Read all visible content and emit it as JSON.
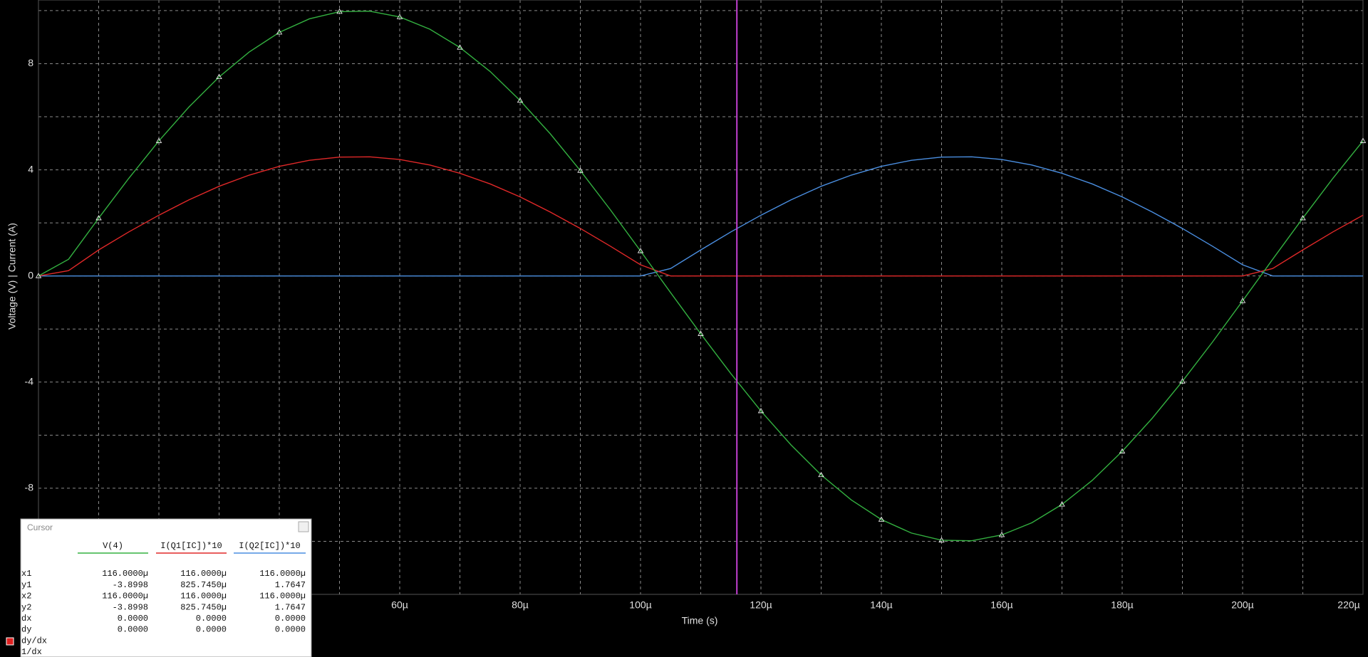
{
  "chart_data": {
    "type": "line",
    "xlabel": "Time (s)",
    "ylabel": "Voltage (V) | Current (A)",
    "x": [
      0,
      5e-06,
      1e-05,
      1.5e-05,
      2e-05,
      2.5e-05,
      3e-05,
      3.5e-05,
      4e-05,
      4.5e-05,
      5e-05,
      5.5e-05,
      6e-05,
      6.5e-05,
      7e-05,
      7.5e-05,
      8e-05,
      8.5e-05,
      9e-05,
      9.5e-05,
      0.0001,
      0.000105,
      0.00011,
      0.000115,
      0.00012,
      0.000125,
      0.00013,
      0.000135,
      0.00014,
      0.000145,
      0.00015,
      0.000155,
      0.00016,
      0.000165,
      0.00017,
      0.000175,
      0.00018,
      0.000185,
      0.00019,
      0.000195,
      0.0002,
      0.000205,
      0.00021,
      0.000215,
      0.00022
    ],
    "series": [
      {
        "name": "V(4)",
        "color": "#33b040",
        "markers": true,
        "values": [
          0,
          0.63,
          2.18,
          3.68,
          5.09,
          6.37,
          7.5,
          8.44,
          9.18,
          9.69,
          9.96,
          9.98,
          9.76,
          9.3,
          8.61,
          7.71,
          6.61,
          5.36,
          3.97,
          2.49,
          0.94,
          -0.63,
          -2.18,
          -3.68,
          -5.09,
          -6.37,
          -7.5,
          -8.44,
          -9.18,
          -9.69,
          -9.96,
          -9.98,
          -9.76,
          -9.3,
          -8.61,
          -7.71,
          -6.61,
          -5.36,
          -3.97,
          -2.49,
          -0.94,
          0.63,
          2.18,
          3.68,
          5.09
        ]
      },
      {
        "name": "I(Q1[IC])*10",
        "color": "#e02828",
        "markers": false,
        "values": [
          0,
          0.2,
          0.98,
          1.66,
          2.29,
          2.87,
          3.38,
          3.8,
          4.13,
          4.36,
          4.48,
          4.49,
          4.39,
          4.18,
          3.87,
          3.47,
          2.98,
          2.41,
          1.79,
          1.12,
          0.42,
          0,
          0,
          0,
          0,
          0,
          0,
          0,
          0,
          0,
          0,
          0,
          0,
          0,
          0,
          0,
          0,
          0,
          0,
          0,
          0,
          0.28,
          0.98,
          1.66,
          2.29
        ]
      },
      {
        "name": "I(Q2[IC])*10",
        "color": "#4a8ee0",
        "markers": false,
        "values": [
          0,
          0,
          0,
          0,
          0,
          0,
          0,
          0,
          0,
          0,
          0,
          0,
          0,
          0,
          0,
          0,
          0,
          0,
          0,
          0,
          0,
          0.28,
          0.98,
          1.66,
          2.29,
          2.87,
          3.38,
          3.8,
          4.13,
          4.36,
          4.48,
          4.49,
          4.39,
          4.18,
          3.87,
          3.47,
          2.98,
          2.41,
          1.79,
          1.12,
          0.42,
          0,
          0,
          0,
          0
        ]
      }
    ],
    "xlim": [
      0,
      0.00022
    ],
    "ylim": [
      -12,
      10.4
    ],
    "xticks": [
      {
        "value": 6e-05,
        "label": "60µ"
      },
      {
        "value": 8e-05,
        "label": "80µ"
      },
      {
        "value": 0.0001,
        "label": "100µ"
      },
      {
        "value": 0.00012,
        "label": "120µ"
      },
      {
        "value": 0.00014,
        "label": "140µ"
      },
      {
        "value": 0.00016,
        "label": "160µ"
      },
      {
        "value": 0.00018,
        "label": "180µ"
      },
      {
        "value": 0.0002,
        "label": "200µ"
      },
      {
        "value": 0.00022,
        "label": "220µ"
      }
    ],
    "yticks": [
      8,
      4,
      0,
      -4,
      -8
    ],
    "x_minor_ticks": [
      0,
      1e-05,
      2e-05,
      3e-05,
      4e-05,
      5e-05,
      7e-05,
      9e-05,
      0.00011,
      0.00013,
      0.00015,
      0.00017,
      0.00019,
      0.00021
    ],
    "y_minor_ticks": [
      10,
      6,
      2,
      -2,
      -6,
      -10
    ],
    "grid": true,
    "cursor_x": 0.000116,
    "cursor_color": "#c040d0"
  },
  "cursor_panel": {
    "title": "Cursor",
    "columns": [
      "V(4)",
      "I(Q1[IC])*10",
      "I(Q2[IC])*10"
    ],
    "rows": [
      {
        "label": "x1",
        "cells": [
          "116.0000µ",
          "116.0000µ",
          "116.0000µ"
        ]
      },
      {
        "label": "y1",
        "cells": [
          "-3.8998",
          "825.7450µ",
          "1.7647"
        ]
      },
      {
        "label": "x2",
        "cells": [
          "116.0000µ",
          "116.0000µ",
          "116.0000µ"
        ]
      },
      {
        "label": "y2",
        "cells": [
          "-3.8998",
          "825.7450µ",
          "1.7647"
        ]
      },
      {
        "label": "dx",
        "cells": [
          "0.0000",
          "0.0000",
          "0.0000"
        ]
      },
      {
        "label": "dy",
        "cells": [
          "0.0000",
          "0.0000",
          "0.0000"
        ]
      },
      {
        "label": "dy/dx",
        "cells": []
      },
      {
        "label": "1/dx",
        "cells": []
      }
    ]
  }
}
